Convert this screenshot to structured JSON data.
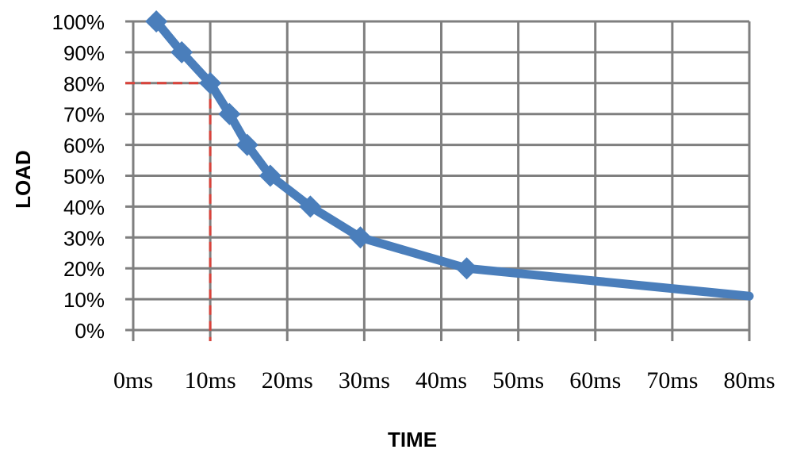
{
  "chart_data": {
    "type": "line",
    "xlabel": "TIME",
    "ylabel": "LOAD",
    "xlim": [
      0,
      80
    ],
    "ylim": [
      0,
      100
    ],
    "x_ticks": [
      0,
      10,
      20,
      30,
      40,
      50,
      60,
      70,
      80
    ],
    "x_tick_labels": [
      "0ms",
      "10ms",
      "20ms",
      "30ms",
      "40ms",
      "50ms",
      "60ms",
      "70ms",
      "80ms"
    ],
    "y_ticks": [
      0,
      10,
      20,
      30,
      40,
      50,
      60,
      70,
      80,
      90,
      100
    ],
    "y_tick_labels": [
      "0%",
      "10%",
      "20%",
      "30%",
      "40%",
      "50%",
      "60%",
      "70%",
      "80%",
      "90%",
      "100%"
    ],
    "grid": true,
    "series": [
      {
        "color": "#4a7ebb",
        "marker": "diamond",
        "points": [
          {
            "x": 3,
            "y": 100,
            "marker": true
          },
          {
            "x": 6.3,
            "y": 90,
            "marker": true
          },
          {
            "x": 10,
            "y": 80,
            "marker": true
          },
          {
            "x": 12.5,
            "y": 70,
            "marker": true
          },
          {
            "x": 14.8,
            "y": 60,
            "marker": true
          },
          {
            "x": 17.8,
            "y": 50,
            "marker": true
          },
          {
            "x": 23,
            "y": 40,
            "marker": true
          },
          {
            "x": 29.5,
            "y": 30,
            "marker": true
          },
          {
            "x": 43.3,
            "y": 20,
            "marker": true
          },
          {
            "x": 80,
            "y": 11,
            "marker": false
          }
        ]
      }
    ],
    "reference_lines": {
      "color": "#d9423a",
      "style": "dashed",
      "x": 10,
      "y": 80
    }
  }
}
